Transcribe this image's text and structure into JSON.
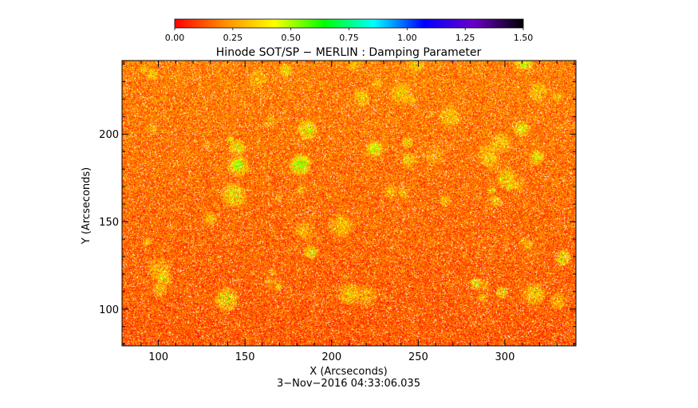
{
  "chart_data": {
    "type": "heatmap",
    "title": "Hinode SOT/SP − MERLIN : Damping Parameter",
    "xlabel": "X (Arcseconds)",
    "ylabel": "Y (Arcseconds)",
    "timestamp": "3−Nov−2016 04:33:06.035",
    "xlim": [
      79,
      341
    ],
    "ylim": [
      79,
      242
    ],
    "x_ticks": [
      {
        "value": 100,
        "label": "100"
      },
      {
        "value": 150,
        "label": "150"
      },
      {
        "value": 200,
        "label": "200"
      },
      {
        "value": 250,
        "label": "250"
      },
      {
        "value": 300,
        "label": "300"
      }
    ],
    "y_ticks": [
      {
        "value": 100,
        "label": "100"
      },
      {
        "value": 150,
        "label": "150"
      },
      {
        "value": 200,
        "label": "200"
      }
    ],
    "colorbar": {
      "range": [
        0,
        1.5
      ],
      "colormap": "rainbow (red → yellow → green → cyan → blue → violet → black)",
      "ticks": [
        {
          "value": 0.0,
          "label": "0.00"
        },
        {
          "value": 0.25,
          "label": "0.25"
        },
        {
          "value": 0.5,
          "label": "0.50"
        },
        {
          "value": 0.75,
          "label": "0.75"
        },
        {
          "value": 1.0,
          "label": "1.00"
        },
        {
          "value": 1.25,
          "label": "1.25"
        },
        {
          "value": 1.5,
          "label": "1.50"
        }
      ],
      "stops": [
        "#ff0000",
        "#ff8c00",
        "#ffff00",
        "#00ff00",
        "#00ffff",
        "#0000ff",
        "#6a00c8",
        "#000000"
      ]
    },
    "field_description": "noisy map dominated by values 0.0–0.3 (red/orange), scattered yellow-green patches up to ~0.5, speckled white (missing) pixels",
    "dominant_value_range": [
      0.0,
      0.35
    ],
    "patch_max_value": 0.55
  }
}
